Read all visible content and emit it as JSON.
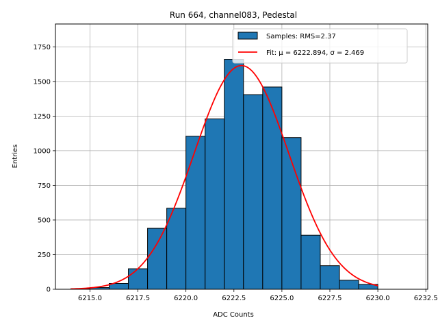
{
  "chart_data": {
    "type": "bar",
    "title": "Run 664, channel083, Pedestal",
    "xlabel": "ADC Counts",
    "ylabel": "Entries",
    "xlim": [
      6213.2,
      6232.6
    ],
    "ylim": [
      0,
      1915
    ],
    "xticks": [
      6215.0,
      6217.5,
      6220.0,
      6222.5,
      6225.0,
      6227.5,
      6230.0,
      6232.5
    ],
    "xtick_labels": [
      "6215.0",
      "6217.5",
      "6220.0",
      "6222.5",
      "6225.0",
      "6227.5",
      "6230.0",
      "6232.5"
    ],
    "yticks": [
      0,
      250,
      500,
      750,
      1000,
      1250,
      1500,
      1750
    ],
    "ytick_labels": [
      "0",
      "250",
      "500",
      "750",
      "1000",
      "1250",
      "1500",
      "1750"
    ],
    "grid": true,
    "legend_position": "top-right",
    "histogram": {
      "name": "Samples: RMS=2.37",
      "color": "#1f77b4",
      "edge_color": "#000000",
      "bin_edges": [
        6214,
        6215,
        6216,
        6217,
        6218,
        6219,
        6220,
        6221,
        6222,
        6223,
        6224,
        6225,
        6226,
        6227,
        6228,
        6229,
        6230
      ],
      "counts": [
        3,
        12,
        42,
        148,
        440,
        585,
        1105,
        1230,
        1660,
        1405,
        1460,
        1095,
        390,
        170,
        65,
        35
      ]
    },
    "fit": {
      "name": "Fit: μ = 6222.894, σ = 2.469",
      "color": "#ff0000",
      "mu": 6222.894,
      "sigma": 2.469,
      "amplitude": 1615,
      "x_range": [
        6214,
        6230
      ]
    }
  }
}
